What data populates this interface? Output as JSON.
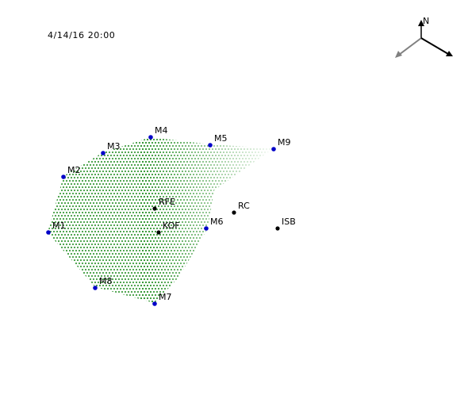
{
  "timestamp": "4/14/16 20:00",
  "compass": {
    "north_label": "N",
    "icon": "compass-arrows-icon"
  },
  "colors": {
    "blue_station": "#0000c8",
    "black_station": "#000000",
    "field_green": "#1e8c1e",
    "arrow_gray": "#808080",
    "arrow_black": "#000000"
  },
  "stations": {
    "blue": [
      {
        "label": "M1"
      },
      {
        "label": "M2"
      },
      {
        "label": "M3"
      },
      {
        "label": "M4"
      },
      {
        "label": "M5"
      },
      {
        "label": "M6"
      },
      {
        "label": "M7"
      },
      {
        "label": "M8"
      },
      {
        "label": "M9"
      }
    ],
    "black": [
      {
        "label": "RFE"
      },
      {
        "label": "KOF"
      },
      {
        "label": "RC"
      },
      {
        "label": "ISB"
      }
    ]
  }
}
